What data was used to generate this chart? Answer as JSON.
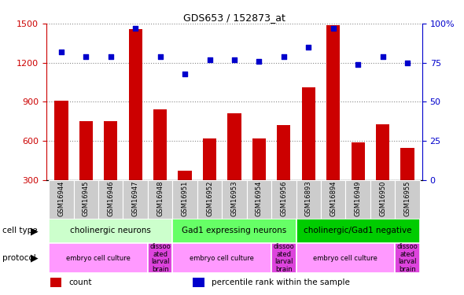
{
  "title": "GDS653 / 152873_at",
  "samples": [
    "GSM16944",
    "GSM16945",
    "GSM16946",
    "GSM16947",
    "GSM16948",
    "GSM16951",
    "GSM16952",
    "GSM16953",
    "GSM16954",
    "GSM16956",
    "GSM16893",
    "GSM16894",
    "GSM16949",
    "GSM16950",
    "GSM16955"
  ],
  "counts": [
    910,
    750,
    750,
    1460,
    840,
    370,
    620,
    810,
    620,
    720,
    1010,
    1490,
    590,
    730,
    545
  ],
  "percentiles": [
    82,
    79,
    79,
    97,
    79,
    68,
    77,
    77,
    76,
    79,
    85,
    97,
    74,
    79,
    75
  ],
  "ylim_left": [
    300,
    1500
  ],
  "ylim_right": [
    0,
    100
  ],
  "yticks_left": [
    300,
    600,
    900,
    1200,
    1500
  ],
  "yticks_right": [
    0,
    25,
    50,
    75,
    100
  ],
  "bar_color": "#cc0000",
  "dot_color": "#0000cc",
  "cell_type_groups": [
    {
      "label": "cholinergic neurons",
      "start": 0,
      "end": 4,
      "color": "#ccffcc"
    },
    {
      "label": "Gad1 expressing neurons",
      "start": 5,
      "end": 9,
      "color": "#66ff66"
    },
    {
      "label": "cholinergic/Gad1 negative",
      "start": 10,
      "end": 14,
      "color": "#00cc00"
    }
  ],
  "protocol_groups": [
    {
      "label": "embryo cell culture",
      "start": 0,
      "end": 3,
      "color": "#ff99ff"
    },
    {
      "label": "dissoo\nated\nlarval\nbrain",
      "start": 4,
      "end": 4,
      "color": "#dd44dd"
    },
    {
      "label": "embryo cell culture",
      "start": 5,
      "end": 8,
      "color": "#ff99ff"
    },
    {
      "label": "dissoo\nated\nlarval\nbrain",
      "start": 9,
      "end": 9,
      "color": "#dd44dd"
    },
    {
      "label": "embryo cell culture",
      "start": 10,
      "end": 13,
      "color": "#ff99ff"
    },
    {
      "label": "dissoo\nated\nlarval\nbrain",
      "start": 14,
      "end": 14,
      "color": "#dd44dd"
    }
  ],
  "tick_bg_color": "#cccccc",
  "legend_items": [
    {
      "color": "#cc0000",
      "label": "count"
    },
    {
      "color": "#0000cc",
      "label": "percentile rank within the sample"
    }
  ],
  "fig_bg": "#ffffff"
}
